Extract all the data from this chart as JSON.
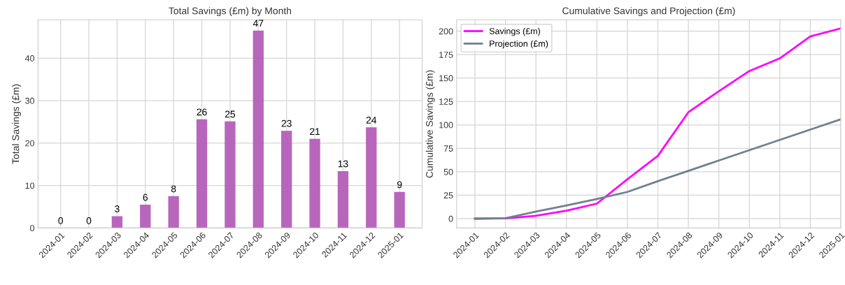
{
  "chart_data": [
    {
      "type": "bar",
      "title": "Total Savings (£m) by Month",
      "ylabel": "Total Savings (£m)",
      "categories": [
        "2024-01",
        "2024-02",
        "2024-03",
        "2024-04",
        "2024-05",
        "2024-06",
        "2024-07",
        "2024-08",
        "2024-09",
        "2024-10",
        "2024-11",
        "2024-12",
        "2025-01"
      ],
      "values": [
        0,
        0,
        2.8,
        5.5,
        7.5,
        25.6,
        25.1,
        46.5,
        22.9,
        21.0,
        13.4,
        23.7,
        8.5
      ],
      "value_labels": [
        "0",
        "0",
        "3",
        "6",
        "8",
        "26",
        "25",
        "47",
        "23",
        "21",
        "13",
        "24",
        "9"
      ],
      "color": "#b45eb8",
      "ylim": [
        0,
        49
      ],
      "yticks": [
        0,
        10,
        20,
        30,
        40
      ],
      "grid": true
    },
    {
      "type": "line",
      "title": "Cumulative Savings and Projection (£m)",
      "ylabel": "Cumulative Savings (£m)",
      "categories": [
        "2024-01",
        "2024-02",
        "2024-03",
        "2024-04",
        "2024-05",
        "2024-06",
        "2024-07",
        "2024-08",
        "2024-09",
        "2024-10",
        "2024-11",
        "2024-12",
        "2025-01"
      ],
      "series": [
        {
          "name": "Savings (£m)",
          "color": "#ff00ff",
          "values": [
            0,
            0.3,
            3,
            8.5,
            16,
            42,
            67,
            113.5,
            136,
            157.5,
            171,
            194.5,
            203
          ]
        },
        {
          "name": "Projection (£m)",
          "color": "#708090",
          "values": [
            0,
            0.5,
            7.5,
            14,
            21,
            28.5,
            40,
            51,
            62,
            73,
            84,
            95,
            106
          ]
        }
      ],
      "ylim": [
        -10,
        212
      ],
      "yticks": [
        0,
        25,
        50,
        75,
        100,
        125,
        150,
        175,
        200
      ],
      "grid": true,
      "legend": "top left",
      "marker": "none",
      "line_style": "solid"
    }
  ]
}
